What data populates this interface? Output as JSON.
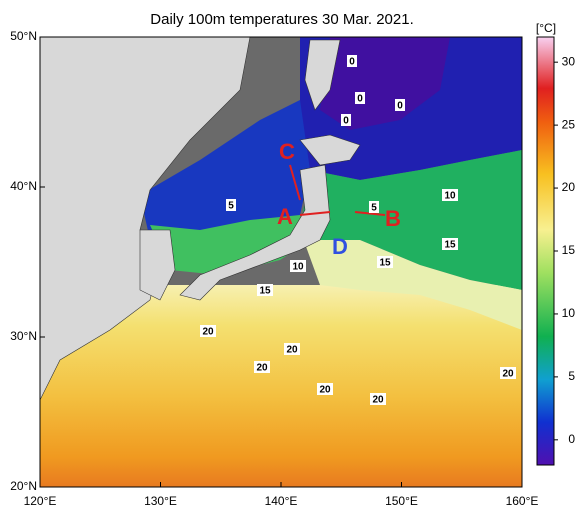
{
  "map": {
    "title": "Daily 100m temperatures 30 Mar. 2021.",
    "xlim": [
      120,
      160
    ],
    "ylim": [
      20,
      50
    ],
    "xticks": [
      {
        "value": 120,
        "label": "120°E"
      },
      {
        "value": 130,
        "label": "130°E"
      },
      {
        "value": 140,
        "label": "140°E"
      },
      {
        "value": 150,
        "label": "150°E"
      },
      {
        "value": 160,
        "label": "160°E"
      }
    ],
    "yticks": [
      {
        "value": 20,
        "label": "20°N"
      },
      {
        "value": 30,
        "label": "30°N"
      },
      {
        "value": 40,
        "label": "40°N"
      },
      {
        "value": 50,
        "label": "50°N"
      }
    ],
    "colorbar": {
      "unit": "[°C]",
      "lim": [
        -2,
        32
      ],
      "ticks": [
        0,
        5,
        10,
        15,
        20,
        25,
        30
      ]
    },
    "contour_labels": [
      "0",
      "0",
      "0",
      "0",
      "5",
      "5",
      "10",
      "10",
      "15",
      "15",
      "15",
      "20",
      "20",
      "20",
      "20",
      "20",
      "20"
    ],
    "markers": [
      "C",
      "A",
      "B",
      "D"
    ]
  }
}
